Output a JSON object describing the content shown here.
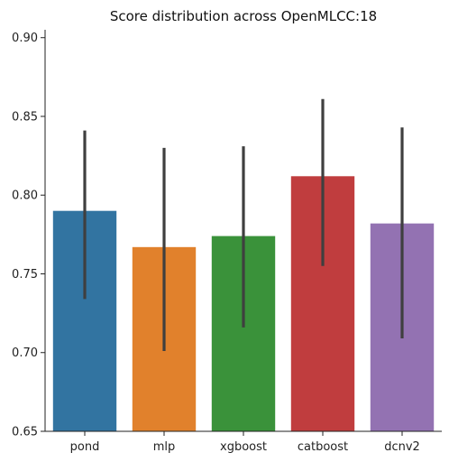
{
  "chart_data": {
    "type": "bar",
    "title": "Score distribution across OpenMLCC:18",
    "xlabel": "",
    "ylabel": "",
    "ylim": [
      0.65,
      0.905
    ],
    "yticks": [
      0.65,
      0.7,
      0.75,
      0.8,
      0.85,
      0.9
    ],
    "ytick_labels": [
      "0.65",
      "0.70",
      "0.75",
      "0.80",
      "0.85",
      "0.90"
    ],
    "categories": [
      "pond",
      "mlp",
      "xgboost",
      "catboost",
      "dcnv2"
    ],
    "values": [
      0.79,
      0.767,
      0.774,
      0.812,
      0.782
    ],
    "error_low": [
      0.734,
      0.701,
      0.716,
      0.755,
      0.709
    ],
    "error_high": [
      0.841,
      0.83,
      0.831,
      0.861,
      0.843
    ],
    "colors": [
      "#3274a1",
      "#e1812c",
      "#3a923a",
      "#c03d3e",
      "#9372b2"
    ],
    "error_color": "#3f3f3f",
    "grid": false,
    "legend": "none"
  }
}
